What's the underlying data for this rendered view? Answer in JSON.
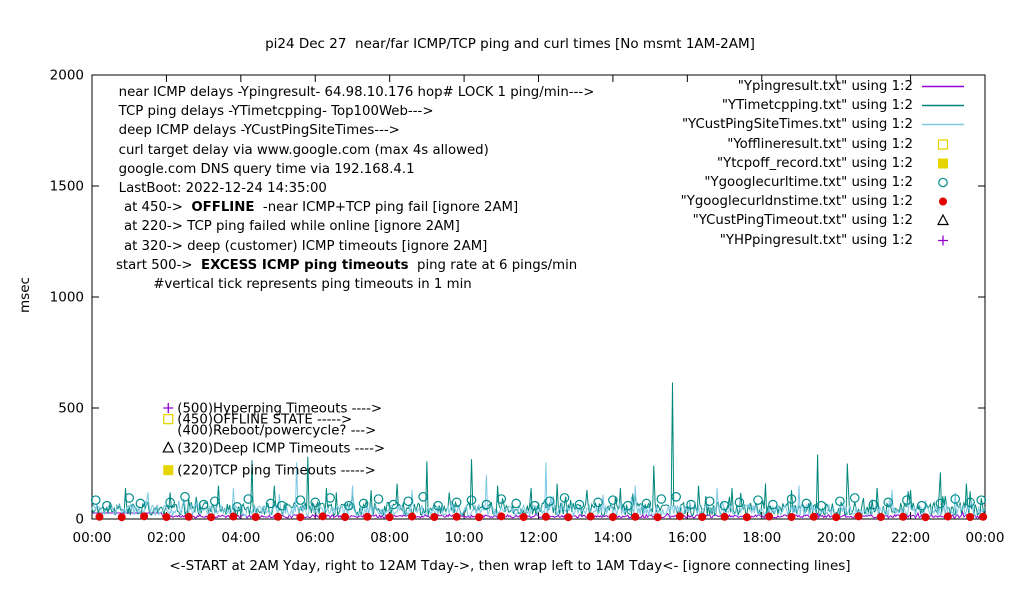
{
  "chart_data": {
    "type": "line",
    "title": "pi24 Dec 27  near/far ICMP/TCP ping and curl times [No msmt 1AM-2AM]",
    "xlabel": "<-START at 2AM Yday, right to 12AM Tday->, then wrap left to 1AM Tday<- [ignore connecting lines]",
    "ylabel": "msec",
    "ylim": [
      0,
      2000
    ],
    "xlim_hours": [
      0,
      24
    ],
    "y_ticks": [
      0,
      500,
      1000,
      1500,
      2000
    ],
    "x_ticks": [
      "00:00",
      "02:00",
      "04:00",
      "06:00",
      "08:00",
      "10:00",
      "12:00",
      "14:00",
      "16:00",
      "18:00",
      "20:00",
      "22:00",
      "00:00"
    ],
    "grid": false,
    "legend_position": "top-right",
    "line_series": [
      {
        "name": "Ypingresult",
        "color": "#9400d3",
        "baseline": 12,
        "noise": 7,
        "seed": 11,
        "flat_until": 1.9,
        "flat_value": 27,
        "spikes": []
      },
      {
        "name": "YTimetcpping",
        "color": "#00877c",
        "baseline": 45,
        "noise": 30,
        "seed": 22,
        "spikes": [
          [
            0.9,
            140
          ],
          [
            2.1,
            120
          ],
          [
            2.8,
            100
          ],
          [
            3.4,
            150
          ],
          [
            4.3,
            265
          ],
          [
            4.9,
            150
          ],
          [
            5.8,
            280
          ],
          [
            6.3,
            140
          ],
          [
            7.0,
            120
          ],
          [
            7.5,
            130
          ],
          [
            8.2,
            160
          ],
          [
            9.0,
            260
          ],
          [
            9.6,
            120
          ],
          [
            10.2,
            270
          ],
          [
            10.9,
            150
          ],
          [
            11.8,
            140
          ],
          [
            12.5,
            160
          ],
          [
            13.3,
            130
          ],
          [
            14.2,
            140
          ],
          [
            15.1,
            240
          ],
          [
            15.6,
            615
          ],
          [
            16.3,
            150
          ],
          [
            17.2,
            140
          ],
          [
            18.1,
            160
          ],
          [
            18.8,
            130
          ],
          [
            19.5,
            290
          ],
          [
            20.3,
            250
          ],
          [
            21.1,
            140
          ],
          [
            22.0,
            130
          ],
          [
            22.8,
            210
          ],
          [
            23.5,
            160
          ]
        ]
      },
      {
        "name": "YCustPingSiteTimes",
        "color": "#7ec8e3",
        "baseline": 38,
        "noise": 26,
        "seed": 33,
        "spikes": [
          [
            1.5,
            120
          ],
          [
            3.8,
            140
          ],
          [
            5.5,
            255
          ],
          [
            7.0,
            150
          ],
          [
            8.6,
            130
          ],
          [
            10.6,
            200
          ],
          [
            12.2,
            255
          ],
          [
            14.6,
            150
          ],
          [
            16.8,
            140
          ],
          [
            19.0,
            150
          ],
          [
            21.5,
            130
          ],
          [
            23.2,
            120
          ]
        ]
      }
    ],
    "point_series": [
      {
        "name": "Ygooglecurltime",
        "marker": "open-circle",
        "color": "#008b8b",
        "points": [
          [
            0.1,
            85
          ],
          [
            0.4,
            60
          ],
          [
            1.0,
            95
          ],
          [
            1.3,
            70
          ],
          [
            2.1,
            75
          ],
          [
            2.5,
            100
          ],
          [
            3.0,
            65
          ],
          [
            3.3,
            80
          ],
          [
            3.9,
            55
          ],
          [
            4.2,
            90
          ],
          [
            4.8,
            70
          ],
          [
            5.1,
            60
          ],
          [
            5.6,
            85
          ],
          [
            6.0,
            75
          ],
          [
            6.4,
            95
          ],
          [
            6.9,
            60
          ],
          [
            7.3,
            70
          ],
          [
            7.7,
            90
          ],
          [
            8.1,
            65
          ],
          [
            8.5,
            80
          ],
          [
            8.9,
            100
          ],
          [
            9.3,
            60
          ],
          [
            9.8,
            75
          ],
          [
            10.2,
            85
          ],
          [
            10.6,
            65
          ],
          [
            11.0,
            90
          ],
          [
            11.4,
            70
          ],
          [
            11.9,
            60
          ],
          [
            12.3,
            80
          ],
          [
            12.7,
            95
          ],
          [
            13.1,
            65
          ],
          [
            13.6,
            75
          ],
          [
            14.0,
            85
          ],
          [
            14.4,
            60
          ],
          [
            14.9,
            70
          ],
          [
            15.3,
            90
          ],
          [
            15.7,
            100
          ],
          [
            16.1,
            65
          ],
          [
            16.6,
            80
          ],
          [
            17.0,
            60
          ],
          [
            17.4,
            75
          ],
          [
            17.9,
            85
          ],
          [
            18.3,
            65
          ],
          [
            18.8,
            90
          ],
          [
            19.2,
            70
          ],
          [
            19.6,
            60
          ],
          [
            20.1,
            80
          ],
          [
            20.5,
            95
          ],
          [
            21.0,
            65
          ],
          [
            21.4,
            75
          ],
          [
            21.9,
            85
          ],
          [
            22.3,
            60
          ],
          [
            22.8,
            70
          ],
          [
            23.2,
            90
          ],
          [
            23.6,
            75
          ],
          [
            23.9,
            85
          ]
        ]
      },
      {
        "name": "Ygooglecurldnstime",
        "marker": "filled-circle",
        "color": "#e00000",
        "points": [
          [
            0.2,
            10
          ],
          [
            0.8,
            8
          ],
          [
            1.4,
            12
          ],
          [
            2.0,
            9
          ],
          [
            2.6,
            10
          ],
          [
            3.2,
            8
          ],
          [
            3.8,
            11
          ],
          [
            4.4,
            9
          ],
          [
            5.0,
            10
          ],
          [
            5.6,
            8
          ],
          [
            6.2,
            12
          ],
          [
            6.8,
            9
          ],
          [
            7.4,
            10
          ],
          [
            8.0,
            8
          ],
          [
            8.6,
            11
          ],
          [
            9.2,
            9
          ],
          [
            9.8,
            10
          ],
          [
            10.4,
            8
          ],
          [
            11.0,
            12
          ],
          [
            11.6,
            9
          ],
          [
            12.2,
            10
          ],
          [
            12.8,
            8
          ],
          [
            13.4,
            11
          ],
          [
            14.0,
            9
          ],
          [
            14.6,
            10
          ],
          [
            15.2,
            8
          ],
          [
            15.8,
            12
          ],
          [
            16.4,
            9
          ],
          [
            17.0,
            10
          ],
          [
            17.6,
            8
          ],
          [
            18.2,
            11
          ],
          [
            18.8,
            9
          ],
          [
            19.4,
            10
          ],
          [
            20.0,
            8
          ],
          [
            20.6,
            12
          ],
          [
            21.2,
            9
          ],
          [
            21.8,
            10
          ],
          [
            22.4,
            8
          ],
          [
            23.0,
            11
          ],
          [
            23.6,
            9
          ],
          [
            23.95,
            10
          ]
        ]
      }
    ],
    "threshold_markers": [
      {
        "hour": 2.05,
        "value": 500,
        "marker": "plus",
        "color": "#9400d3",
        "label": "(500)Hyperping Timeouts ---->"
      },
      {
        "hour": 2.05,
        "value": 450,
        "marker": "open-square",
        "color": "#e6d500",
        "label": "(450)OFFLINE STATE ----->"
      },
      {
        "hour": 2.05,
        "value": 400,
        "marker": "none",
        "color": "#000000",
        "label": "(400)Reboot/powercycle? --->"
      },
      {
        "hour": 2.05,
        "value": 320,
        "marker": "open-triangle",
        "color": "#000000",
        "label": "(320)Deep ICMP Timeouts ---->"
      },
      {
        "hour": 2.05,
        "value": 220,
        "marker": "filled-square",
        "color": "#e6d500",
        "label": "(220)TCP ping Timeouts ----->"
      }
    ]
  },
  "annotations": [
    {
      "indent": 0.2,
      "segments": [
        {
          "text": "near ICMP delays -Ypingresult- 64.98.10.176 hop# LOCK 1 ping/min--->",
          "bold": false
        }
      ]
    },
    {
      "indent": 0.2,
      "segments": [
        {
          "text": "TCP ping delays -YTimetcpping- Top100Web--->",
          "bold": false
        }
      ]
    },
    {
      "indent": 0.2,
      "segments": [
        {
          "text": "deep ICMP delays -YCustPingSiteTimes--->",
          "bold": false
        }
      ]
    },
    {
      "indent": 0.2,
      "segments": [
        {
          "text": "curl target delay via www.google.com (max 4s allowed)",
          "bold": false
        }
      ]
    },
    {
      "indent": 0.2,
      "segments": [
        {
          "text": "google.com DNS query time via 192.168.4.1",
          "bold": false
        }
      ]
    },
    {
      "indent": 0.2,
      "segments": [
        {
          "text": "LastBoot: 2022-12-24 14:35:00",
          "bold": false
        }
      ]
    },
    {
      "indent": 0.6,
      "segments": [
        {
          "text": "at 450->  ",
          "bold": false
        },
        {
          "text": "OFFLINE",
          "bold": true
        },
        {
          "text": "  -near ICMP+TCP ping fail [ignore 2AM]",
          "bold": false
        }
      ]
    },
    {
      "indent": 0.6,
      "segments": [
        {
          "text": "at 220-> TCP ping failed while online [ignore 2AM]",
          "bold": false
        }
      ]
    },
    {
      "indent": 0.6,
      "segments": [
        {
          "text": "at 320-> deep (customer) ICMP timeouts [ignore 2AM]",
          "bold": false
        }
      ]
    },
    {
      "indent": 0.0,
      "segments": [
        {
          "text": "start 500->  ",
          "bold": false
        },
        {
          "text": "EXCESS ICMP ping timeouts",
          "bold": true
        },
        {
          "text": "  ping rate at 6 pings/min",
          "bold": false
        }
      ]
    },
    {
      "indent": 2.8,
      "segments": [
        {
          "text": "#vertical tick represents ping timeouts in 1 min",
          "bold": false
        }
      ]
    }
  ],
  "legend": [
    {
      "label": "\"Ypingresult.txt\" using 1:2",
      "marker": "line",
      "color": "#9400d3"
    },
    {
      "label": "\"YTimetcpping.txt\" using 1:2",
      "marker": "line",
      "color": "#00877c"
    },
    {
      "label": "\"YCustPingSiteTimes.txt\" using 1:2",
      "marker": "line",
      "color": "#7ec8e3"
    },
    {
      "label": "\"Yofflineresult.txt\" using 1:2",
      "marker": "open-square",
      "color": "#e6d500"
    },
    {
      "label": "\"Ytcpoff_record.txt\" using 1:2",
      "marker": "filled-square",
      "color": "#e6d500"
    },
    {
      "label": "\"Ygooglecurltime.txt\" using 1:2",
      "marker": "open-circle",
      "color": "#008b8b"
    },
    {
      "label": "\"Ygooglecurldnstime.txt\" using 1:2",
      "marker": "filled-circle",
      "color": "#e00000"
    },
    {
      "label": "\"YCustPingTimeout.txt\" using 1:2",
      "marker": "open-triangle",
      "color": "#000000"
    },
    {
      "label": "\"YHPpingresult.txt\" using 1:2",
      "marker": "plus",
      "color": "#9400d3"
    }
  ]
}
